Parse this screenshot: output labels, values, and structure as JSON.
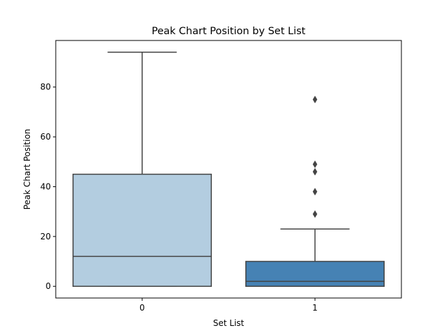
{
  "chart_data": {
    "type": "box",
    "title": "Peak Chart Position by Set List",
    "xlabel": "Set List",
    "ylabel": "Peak Chart Position",
    "categories": [
      "0",
      "1"
    ],
    "ylim": [
      -4.7,
      98.7
    ],
    "yticks": [
      0,
      20,
      40,
      60,
      80
    ],
    "grid": false,
    "boxes": [
      {
        "category": "0",
        "min": 0,
        "q1": 0,
        "median": 12,
        "q3": 45,
        "max": 94,
        "outliers": [],
        "color": "#b3cde0"
      },
      {
        "category": "1",
        "min": 0,
        "q1": 0,
        "median": 2,
        "q3": 10,
        "max": 23,
        "outliers": [
          29,
          38,
          46,
          49,
          75
        ],
        "color": "#4682b4"
      }
    ]
  },
  "colors": {
    "line": "#444444",
    "axes": "#000000",
    "background": "#ffffff"
  }
}
